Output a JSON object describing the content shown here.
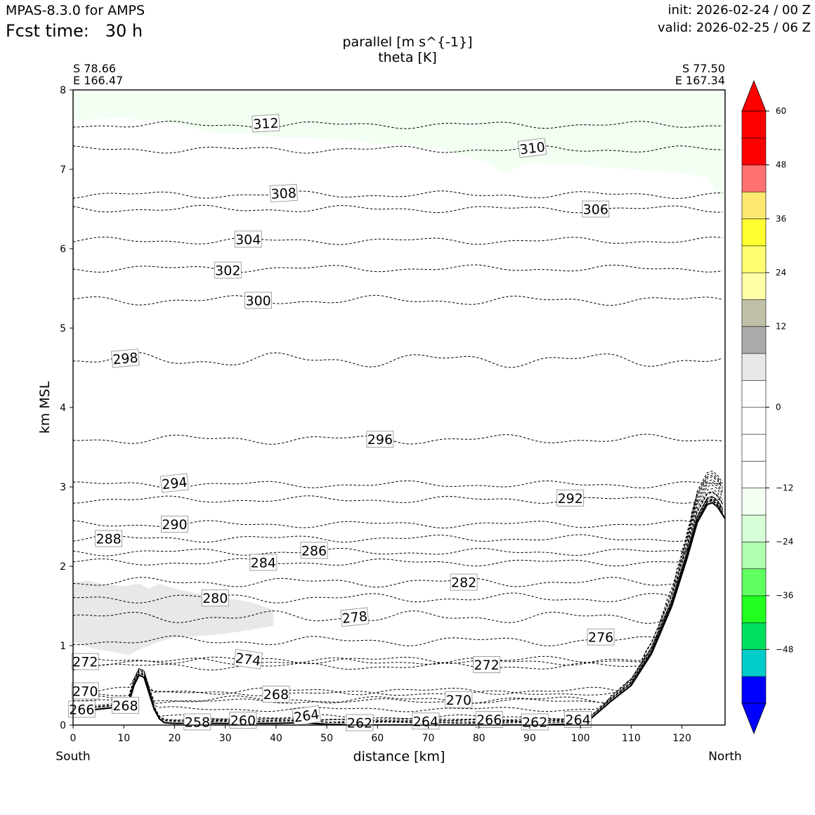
{
  "header": {
    "model": "MPAS-8.3.0 for AMPS",
    "fcst_label": "Fcst time:",
    "fcst_value": "30 h",
    "init": "init: 2026-02-24 / 00 Z",
    "valid": "valid: 2026-02-25 / 06 Z"
  },
  "chart_data": {
    "type": "contour",
    "title": [
      "parallel [m s^{-1}]",
      "theta [K]"
    ],
    "xlabel": "distance [km]",
    "ylabel": "km MSL",
    "xlim": [
      0,
      128.5
    ],
    "ylim": [
      0,
      8
    ],
    "xticks": [
      0,
      10,
      20,
      30,
      40,
      50,
      60,
      70,
      80,
      90,
      100,
      110,
      120
    ],
    "yticks": [
      0,
      1,
      2,
      3,
      4,
      5,
      6,
      7,
      8
    ],
    "left_end": {
      "label": "South",
      "lat": "S 78.66",
      "lon": "E 166.47"
    },
    "right_end": {
      "label": "North",
      "lat": "S 77.50",
      "lon": "E 167.34"
    },
    "colorbar": {
      "bounds": [
        -60,
        -54,
        -48,
        -42,
        -36,
        -30,
        -24,
        -18,
        -12,
        -6,
        -3,
        0,
        3,
        6,
        12,
        18,
        24,
        30,
        36,
        42,
        48,
        54,
        60
      ],
      "colors": [
        "#0000ff",
        "#00cccc",
        "#00e060",
        "#20ff20",
        "#60ff60",
        "#b0ffb0",
        "#d8ffd8",
        "#f2fff2",
        "#ffffff",
        "#ffffff",
        "#ffffff",
        "#ffffff",
        "#e8e8e8",
        "#aaaaaa",
        "#c0c0a8",
        "#ffffa8",
        "#ffff70",
        "#ffff30",
        "#ffe870",
        "#ff7070",
        "#ff0000",
        "#ff0000"
      ],
      "ticks": [
        60,
        48,
        36,
        24,
        12,
        0,
        -12,
        -24,
        -36,
        -48
      ],
      "tick_labels": [
        "60",
        "48",
        "36",
        "24",
        "12",
        "0",
        "−12",
        "−24",
        "−36",
        "−48"
      ],
      "extend": "both",
      "extend_colors": {
        "max": "#ff0000",
        "min": "#0000ff"
      }
    },
    "filled_regions": [
      {
        "name": "negative-light-green",
        "level": -6,
        "color": "#f2fff2",
        "points": [
          [
            0,
            7.98
          ],
          [
            128.5,
            7.98
          ],
          [
            128.5,
            6.6
          ],
          [
            127,
            6.68
          ],
          [
            125,
            6.9
          ],
          [
            120,
            6.95
          ],
          [
            110,
            7.0
          ],
          [
            100,
            7.05
          ],
          [
            90,
            7.08
          ],
          [
            85,
            6.95
          ],
          [
            81,
            7.1
          ],
          [
            78,
            7.15
          ],
          [
            73,
            7.25
          ],
          [
            66,
            7.3
          ],
          [
            60,
            7.32
          ],
          [
            53,
            7.38
          ],
          [
            45,
            7.4
          ],
          [
            40,
            7.4
          ],
          [
            35,
            7.45
          ],
          [
            28,
            7.45
          ],
          [
            20,
            7.58
          ],
          [
            10,
            7.65
          ],
          [
            0,
            7.62
          ]
        ]
      },
      {
        "name": "positive-light-gray",
        "level": 6,
        "color": "#e8e8e8",
        "points": [
          [
            0,
            1.8
          ],
          [
            3,
            1.82
          ],
          [
            6,
            1.77
          ],
          [
            10,
            1.75
          ],
          [
            13,
            1.78
          ],
          [
            15,
            1.72
          ],
          [
            17,
            1.78
          ],
          [
            20,
            1.72
          ],
          [
            25,
            1.65
          ],
          [
            30,
            1.6
          ],
          [
            35,
            1.55
          ],
          [
            39.5,
            1.45
          ],
          [
            39.5,
            1.25
          ],
          [
            35,
            1.2
          ],
          [
            30,
            1.15
          ],
          [
            25,
            1.12
          ],
          [
            20,
            1.1
          ],
          [
            17,
            1.05
          ],
          [
            15,
            1.0
          ],
          [
            13,
            0.95
          ],
          [
            11,
            0.88
          ],
          [
            8,
            0.92
          ],
          [
            5,
            0.95
          ],
          [
            2,
            1.0
          ],
          [
            0,
            1.05
          ]
        ]
      }
    ],
    "theta_contours": [
      {
        "level": 258,
        "y": 0.03,
        "amp": 0.01,
        "label": "258",
        "lx": 24.5,
        "ly": 0.04,
        "la": 0
      },
      {
        "level": 260,
        "y": 0.06,
        "amp": 0.01,
        "label": "260",
        "lx": 33.5,
        "ly": 0.06,
        "la": 0
      },
      {
        "level": 262,
        "y": 0.03,
        "amp": 0.01,
        "label": "262",
        "lx": 56.5,
        "ly": 0.03,
        "la": 0
      },
      {
        "level": 262,
        "y": 0.04,
        "amp": 0.01,
        "label": "262",
        "lx": 91,
        "ly": 0.04,
        "la": 0
      },
      {
        "level": 264,
        "y": 0.1,
        "amp": 0.02,
        "label": "264",
        "lx": 46,
        "ly": 0.12,
        "la": -8
      },
      {
        "level": 264,
        "y": 0.05,
        "amp": 0.01,
        "label": "264",
        "lx": 69.5,
        "ly": 0.05,
        "la": 0
      },
      {
        "level": 264,
        "y": 0.07,
        "amp": 0.01,
        "label": "264",
        "lx": 99.5,
        "ly": 0.07,
        "la": 0
      },
      {
        "level": 266,
        "y": 0.2,
        "amp": 0.02,
        "label": "266",
        "lx": 1.7,
        "ly": 0.2,
        "la": 0
      },
      {
        "level": 266,
        "y": 0.07,
        "amp": 0.01,
        "label": "266",
        "lx": 82,
        "ly": 0.07,
        "la": 0
      },
      {
        "level": 268,
        "y": 0.3,
        "amp": 0.02,
        "label": "268",
        "lx": 10.3,
        "ly": 0.25,
        "la": 0
      },
      {
        "level": 268,
        "y": 0.4,
        "amp": 0.02,
        "label": "268",
        "lx": 40,
        "ly": 0.39,
        "la": 0
      },
      {
        "level": 270,
        "y": 0.43,
        "amp": 0.03,
        "label": "270",
        "lx": 2.4,
        "ly": 0.43,
        "la": 0
      },
      {
        "level": 270,
        "y": 0.32,
        "amp": 0.03,
        "label": "270",
        "lx": 76,
        "ly": 0.32,
        "la": 0
      },
      {
        "level": 272,
        "y": 0.8,
        "amp": 0.03,
        "label": "272",
        "lx": 2.4,
        "ly": 0.8,
        "la": 0
      },
      {
        "level": 272,
        "y": 0.74,
        "amp": 0.03,
        "label": "272",
        "lx": 81.5,
        "ly": 0.76,
        "la": 0
      },
      {
        "level": 274,
        "y": 0.82,
        "amp": 0.03,
        "label": "274",
        "lx": 34.5,
        "ly": 0.83,
        "la": 8
      },
      {
        "level": 276,
        "y": 1.06,
        "amp": 0.04,
        "label": "276",
        "lx": 104,
        "ly": 1.11,
        "la": 0
      },
      {
        "level": 278,
        "y": 1.36,
        "amp": 0.05,
        "label": "278",
        "lx": 55.5,
        "ly": 1.36,
        "la": -6
      },
      {
        "level": 280,
        "y": 1.6,
        "amp": 0.04,
        "label": "280",
        "lx": 28,
        "ly": 1.6,
        "la": 0
      },
      {
        "level": 282,
        "y": 1.8,
        "amp": 0.04,
        "label": "282",
        "lx": 77,
        "ly": 1.8,
        "la": 0
      },
      {
        "level": 284,
        "y": 2.05,
        "amp": 0.03,
        "label": "284",
        "lx": 37.5,
        "ly": 2.05,
        "la": 0
      },
      {
        "level": 286,
        "y": 2.18,
        "amp": 0.03,
        "label": "286",
        "lx": 47.5,
        "ly": 2.2,
        "la": 0
      },
      {
        "level": 288,
        "y": 2.35,
        "amp": 0.03,
        "label": "288",
        "lx": 7,
        "ly": 2.35,
        "la": 0
      },
      {
        "level": 290,
        "y": 2.53,
        "amp": 0.03,
        "label": "290",
        "lx": 20,
        "ly": 2.53,
        "la": 0
      },
      {
        "level": 292,
        "y": 2.84,
        "amp": 0.03,
        "label": "292",
        "lx": 98,
        "ly": 2.86,
        "la": 0
      },
      {
        "level": 294,
        "y": 3.03,
        "amp": 0.03,
        "label": "294",
        "lx": 20,
        "ly": 3.05,
        "la": -6
      },
      {
        "level": 296,
        "y": 3.6,
        "amp": 0.04,
        "label": "296",
        "lx": 60.5,
        "ly": 3.6,
        "la": 0
      },
      {
        "level": 298,
        "y": 4.6,
        "amp": 0.06,
        "label": "298",
        "lx": 10.3,
        "ly": 4.62,
        "la": -5
      },
      {
        "level": 300,
        "y": 5.35,
        "amp": 0.04,
        "label": "300",
        "lx": 36.5,
        "ly": 5.35,
        "la": 0
      },
      {
        "level": 302,
        "y": 5.75,
        "amp": 0.03,
        "label": "302",
        "lx": 30.5,
        "ly": 5.73,
        "la": 0
      },
      {
        "level": 304,
        "y": 6.1,
        "amp": 0.03,
        "label": "304",
        "lx": 34.5,
        "ly": 6.12,
        "la": 0
      },
      {
        "level": 306,
        "y": 6.5,
        "amp": 0.03,
        "label": "306",
        "lx": 103,
        "ly": 6.5,
        "la": 0
      },
      {
        "level": 308,
        "y": 6.68,
        "amp": 0.03,
        "label": "308",
        "lx": 41.5,
        "ly": 6.7,
        "la": -3
      },
      {
        "level": 310,
        "y": 7.25,
        "amp": 0.03,
        "label": "310",
        "lx": 90.5,
        "ly": 7.27,
        "la": -7
      },
      {
        "level": 312,
        "y": 7.56,
        "amp": 0.03,
        "label": "312",
        "lx": 38,
        "ly": 7.58,
        "la": -3
      }
    ],
    "terrain": [
      [
        0,
        0.17
      ],
      [
        5,
        0.2
      ],
      [
        8,
        0.22
      ],
      [
        11,
        0.28
      ],
      [
        12,
        0.5
      ],
      [
        13,
        0.63
      ],
      [
        14,
        0.6
      ],
      [
        15,
        0.4
      ],
      [
        16,
        0.2
      ],
      [
        17,
        0.08
      ],
      [
        18,
        0.03
      ],
      [
        20,
        0.02
      ],
      [
        30,
        0.02
      ],
      [
        40,
        0.02
      ],
      [
        45,
        0.03
      ],
      [
        50,
        0.01
      ],
      [
        55,
        0.0
      ],
      [
        60,
        0.0
      ],
      [
        70,
        0.0
      ],
      [
        80,
        0.0
      ],
      [
        90,
        0.0
      ],
      [
        98,
        0.01
      ],
      [
        102,
        0.08
      ],
      [
        106,
        0.3
      ],
      [
        110,
        0.5
      ],
      [
        114,
        0.9
      ],
      [
        118,
        1.5
      ],
      [
        121,
        2.1
      ],
      [
        123,
        2.55
      ],
      [
        125,
        2.78
      ],
      [
        126,
        2.8
      ],
      [
        127,
        2.75
      ],
      [
        128.5,
        2.6
      ]
    ]
  }
}
